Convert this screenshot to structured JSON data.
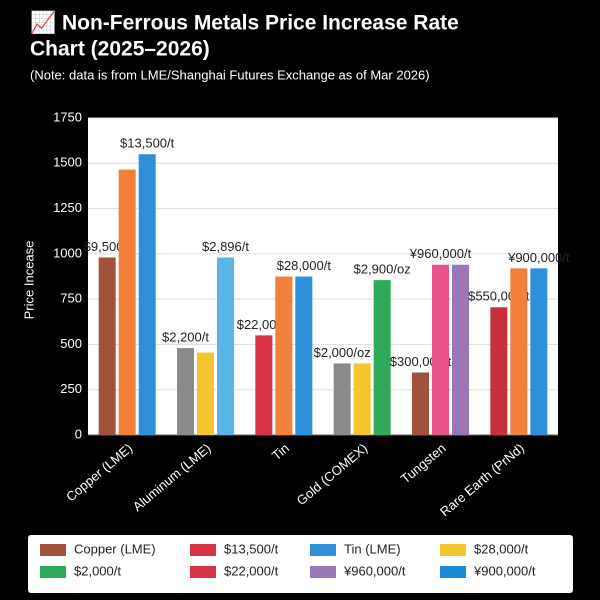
{
  "chart_data": {
    "type": "bar",
    "title_line1": "📈 Non-Ferrous Metals Price Increase Rate",
    "title_line2": "Chart (2025–2026)",
    "subtitle": "(Note: data is from LME/Shanghai Futures Exchange as of Mar 2026)",
    "y_label": "Price Incease",
    "categories": [
      "Copper (LME)",
      "Aluminum (LME)",
      "Tin",
      "Gold (COMEX)",
      "Tungsten",
      "Rare Earth (PrNd)"
    ],
    "series": [
      {
        "values": [
          980,
          480,
          550,
          395,
          345,
          705
        ],
        "colors": [
          "#a0523a",
          "#8a8a8a",
          "#d63344",
          "#8a8a8a",
          "#a0523a",
          "#c8303e"
        ],
        "labels": [
          "$9,500/t",
          "$2,200/t",
          "$22,000/t",
          "$2,000/oz",
          "$300,000/t",
          "$550,000/t"
        ]
      },
      {
        "values": [
          1465,
          455,
          875,
          395,
          940,
          920
        ],
        "colors": [
          "#f0803a",
          "#f2c62c",
          "#f0803a",
          "#f2c62c",
          "#e8548c",
          "#f0803a"
        ],
        "labels": [
          null,
          null,
          null,
          null,
          "¥960,000/t",
          null
        ]
      },
      {
        "values": [
          1550,
          980,
          875,
          855,
          940,
          920
        ],
        "colors": [
          "#2f8fd8",
          "#5ab4e8",
          "#2f8fd8",
          "#2faa5a",
          "#9a78b8",
          "#2f8fd8"
        ],
        "labels": [
          "$13,500/t",
          "$2,896/t",
          "$28,000/t",
          "$2,900/oz",
          null,
          "¥900,000/t"
        ]
      }
    ],
    "ylim": [
      0,
      1750
    ],
    "yticks": [
      0,
      250,
      500,
      750,
      1000,
      1250,
      1500,
      1750
    ],
    "grid": true,
    "legend": [
      {
        "name": "Copper (LME)",
        "color": "#a0523a"
      },
      {
        "name": "$13,500/t",
        "color": "#d63344"
      },
      {
        "name": "Tin (LME)",
        "color": "#2f8fd8"
      },
      {
        "name": "$28,000/t",
        "color": "#f2c62c"
      },
      {
        "name": "$2,000/t",
        "color": "#2faa5a"
      },
      {
        "name": "$22,000/t",
        "color": "#d63344"
      },
      {
        "name": "¥960,000/t",
        "color": "#9a78b8"
      },
      {
        "name": "¥900,000/t",
        "color": "#1e88d8"
      }
    ]
  }
}
